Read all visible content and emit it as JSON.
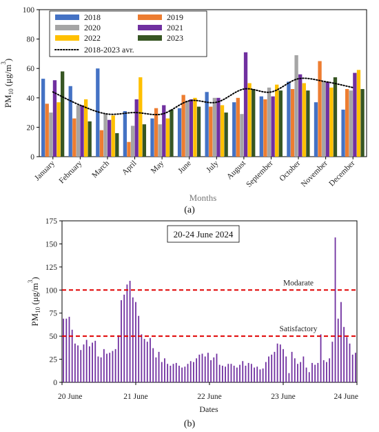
{
  "colors": {
    "2018": "#4472C4",
    "2019": "#ED7D31",
    "2020": "#A5A5A5",
    "2021": "#7030A0",
    "2022": "#FFC000",
    "2023": "#375623",
    "avg": "#000000",
    "daily_bar": "#7030A0",
    "threshold": "#E00000"
  },
  "chart_data": [
    {
      "type": "bar",
      "panel_label": "(a)",
      "xlabel": "Months",
      "ylabel": "PM10 (μg/m³)",
      "ylabel_main": "PM",
      "ylabel_sub": "10",
      "ylabel_rest": " (μg/m",
      "ylabel_sup": "3",
      "ylabel_end": ")",
      "ylim": [
        0,
        100
      ],
      "yticks": [
        0,
        20,
        40,
        60,
        80,
        100
      ],
      "categories": [
        "January",
        "February",
        "March",
        "April",
        "May",
        "June",
        "July",
        "August",
        "September",
        "October",
        "November",
        "December"
      ],
      "series": [
        {
          "name": "2018",
          "values": [
            53,
            48,
            60,
            31,
            26,
            33,
            44,
            37,
            41,
            51,
            37,
            32
          ]
        },
        {
          "name": "2019",
          "values": [
            36,
            26,
            18,
            10,
            33,
            42,
            34,
            40,
            39,
            46,
            65,
            46
          ]
        },
        {
          "name": "2020",
          "values": [
            30,
            35,
            29,
            21,
            22,
            38,
            40,
            29,
            47,
            69,
            51,
            45
          ]
        },
        {
          "name": "2021",
          "values": [
            52,
            35,
            25,
            39,
            35,
            39,
            40,
            71,
            41,
            56,
            51,
            57
          ]
        },
        {
          "name": "2022",
          "values": [
            37,
            39,
            28,
            54,
            26,
            40,
            35,
            50,
            49,
            50,
            47,
            59
          ]
        },
        {
          "name": "2023",
          "values": [
            58,
            24,
            16,
            22,
            32,
            34,
            30,
            46,
            45,
            45,
            54,
            46
          ]
        }
      ],
      "average": {
        "name": "2018-2023 avr.",
        "values": [
          44,
          35,
          29,
          30,
          29,
          38,
          37,
          46,
          44,
          53,
          51,
          47
        ]
      },
      "legend_position": "top-left",
      "grid": false
    },
    {
      "type": "bar",
      "panel_label": "(b)",
      "annotation": "20-24 June 2024",
      "xlabel": "Dates",
      "ylabel": "PM10 (μg/m³)",
      "ylabel_main": "PM",
      "ylabel_sub": "10",
      "ylabel_rest": " (μg/m",
      "ylabel_sup": "3",
      "ylabel_end": ")",
      "ylim": [
        0,
        175
      ],
      "yticks": [
        0,
        25,
        50,
        75,
        100,
        125,
        150,
        175
      ],
      "x_ticks": [
        "20 June",
        "21 June",
        "22 June",
        "23 June",
        "24 June"
      ],
      "thresholds": [
        {
          "label": "Modarate",
          "value": 100
        },
        {
          "label": "Satisfactory",
          "value": 50
        }
      ],
      "values": [
        69,
        69,
        71,
        57,
        42,
        40,
        35,
        41,
        46,
        39,
        43,
        45,
        28,
        27,
        36,
        31,
        32,
        34,
        36,
        51,
        89,
        95,
        106,
        110,
        92,
        87,
        72,
        52,
        47,
        44,
        48,
        37,
        27,
        33,
        22,
        26,
        20,
        18,
        20,
        21,
        18,
        16,
        17,
        20,
        23,
        22,
        26,
        30,
        31,
        28,
        32,
        24,
        27,
        31,
        19,
        18,
        17,
        20,
        20,
        18,
        16,
        19,
        23,
        18,
        21,
        20,
        16,
        17,
        14,
        15,
        22,
        28,
        30,
        33,
        42,
        41,
        36,
        28,
        10,
        33,
        26,
        20,
        22,
        28,
        16,
        11,
        21,
        19,
        21,
        52,
        24,
        22,
        26,
        44,
        157,
        69,
        87,
        60,
        49,
        42,
        30,
        32
      ]
    }
  ]
}
